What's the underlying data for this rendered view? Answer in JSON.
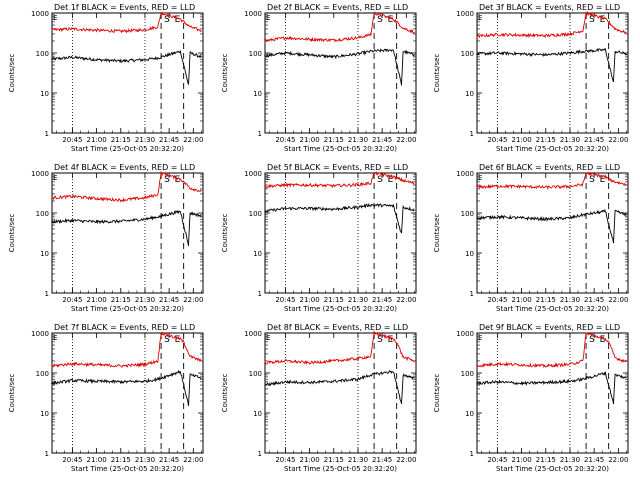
{
  "figure": {
    "time_axis_label": "Start Time (25-Oct-05 20:32:20)",
    "y_axis_label": "Counts/sec",
    "x_tick_labels": [
      "20:45",
      "21:00",
      "21:15",
      "21:30",
      "21:45",
      "22:00"
    ],
    "y_tick_labels": [
      "1",
      "10",
      "100",
      "1000"
    ],
    "marker_labels": [
      "S",
      "E"
    ],
    "colors": {
      "events": "#000000",
      "lld": "#e00000",
      "axes": "#000000",
      "background": "#ffffff"
    }
  },
  "chart_data": [
    {
      "type": "line",
      "title": "Det 1f BLACK = Events, RED = LLD",
      "xlabel": "Start Time (25-Oct-05 20:32:20)",
      "ylabel": "Counts/sec",
      "yscale": "log",
      "ylim": [
        1,
        1000
      ],
      "x_ticks": [
        "20:45",
        "21:00",
        "21:15",
        "21:30",
        "21:45",
        "22:00"
      ],
      "markers": {
        "S": "21:40",
        "E": "21:54"
      },
      "series": [
        {
          "name": "Events",
          "points": [
            [
              "20:32",
              70
            ],
            [
              "20:45",
              78
            ],
            [
              "21:00",
              68
            ],
            [
              "21:15",
              63
            ],
            [
              "21:30",
              68
            ],
            [
              "21:38",
              75
            ],
            [
              "21:52",
              110
            ],
            [
              "21:57",
              16
            ],
            [
              "21:58",
              100
            ],
            [
              "22:05",
              80
            ]
          ]
        },
        {
          "name": "LLD",
          "points": [
            [
              "20:32",
              380
            ],
            [
              "20:45",
              400
            ],
            [
              "21:00",
              370
            ],
            [
              "21:15",
              350
            ],
            [
              "21:30",
              380
            ],
            [
              "21:38",
              450
            ],
            [
              "21:40",
              1000
            ],
            [
              "21:52",
              700
            ],
            [
              "21:54",
              600
            ],
            [
              "21:58",
              450
            ],
            [
              "22:05",
              360
            ]
          ]
        }
      ]
    },
    {
      "type": "line",
      "title": "Det 2f BLACK = Events, RED = LLD",
      "xlabel": "Start Time (25-Oct-05 20:32:20)",
      "ylabel": "Counts/sec",
      "yscale": "log",
      "ylim": [
        1,
        1000
      ],
      "x_ticks": [
        "20:45",
        "21:00",
        "21:15",
        "21:30",
        "21:45",
        "22:00"
      ],
      "markers": {
        "S": "21:40",
        "E": "21:54"
      },
      "series": [
        {
          "name": "Events",
          "points": [
            [
              "20:32",
              85
            ],
            [
              "20:45",
              100
            ],
            [
              "21:00",
              90
            ],
            [
              "21:15",
              80
            ],
            [
              "21:30",
              95
            ],
            [
              "21:38",
              110
            ],
            [
              "21:52",
              120
            ],
            [
              "21:57",
              16
            ],
            [
              "21:58",
              110
            ],
            [
              "22:05",
              90
            ]
          ]
        },
        {
          "name": "LLD",
          "points": [
            [
              "20:32",
              200
            ],
            [
              "20:45",
              240
            ],
            [
              "21:00",
              220
            ],
            [
              "21:15",
              210
            ],
            [
              "21:30",
              240
            ],
            [
              "21:38",
              290
            ],
            [
              "21:40",
              1000
            ],
            [
              "21:52",
              700
            ],
            [
              "21:54",
              600
            ],
            [
              "21:58",
              420
            ],
            [
              "22:05",
              330
            ]
          ]
        }
      ]
    },
    {
      "type": "line",
      "title": "Det 3f BLACK = Events, RED = LLD",
      "xlabel": "Start Time (25-Oct-05 20:32:20)",
      "ylabel": "Counts/sec",
      "yscale": "log",
      "ylim": [
        1,
        1000
      ],
      "x_ticks": [
        "20:45",
        "21:00",
        "21:15",
        "21:30",
        "21:45",
        "22:00"
      ],
      "markers": {
        "S": "21:40",
        "E": "21:54"
      },
      "series": [
        {
          "name": "Events",
          "points": [
            [
              "20:32",
              95
            ],
            [
              "20:45",
              100
            ],
            [
              "21:00",
              95
            ],
            [
              "21:15",
              90
            ],
            [
              "21:30",
              100
            ],
            [
              "21:38",
              110
            ],
            [
              "21:52",
              120
            ],
            [
              "21:57",
              18
            ],
            [
              "21:58",
              110
            ],
            [
              "22:05",
              95
            ]
          ]
        },
        {
          "name": "LLD",
          "points": [
            [
              "20:32",
              260
            ],
            [
              "20:45",
              290
            ],
            [
              "21:00",
              280
            ],
            [
              "21:15",
              270
            ],
            [
              "21:30",
              300
            ],
            [
              "21:38",
              360
            ],
            [
              "21:40",
              1000
            ],
            [
              "21:52",
              700
            ],
            [
              "21:54",
              600
            ],
            [
              "21:58",
              400
            ],
            [
              "22:05",
              320
            ]
          ]
        }
      ]
    },
    {
      "type": "line",
      "title": "Det 4f BLACK = Events, RED = LLD",
      "xlabel": "Start Time (25-Oct-05 20:32:20)",
      "ylabel": "Counts/sec",
      "yscale": "log",
      "ylim": [
        1,
        1000
      ],
      "x_ticks": [
        "20:45",
        "21:00",
        "21:15",
        "21:30",
        "21:45",
        "22:00"
      ],
      "markers": {
        "S": "21:40",
        "E": "21:54"
      },
      "series": [
        {
          "name": "Events",
          "points": [
            [
              "20:32",
              60
            ],
            [
              "20:45",
              65
            ],
            [
              "21:00",
              60
            ],
            [
              "21:15",
              62
            ],
            [
              "21:30",
              70
            ],
            [
              "21:38",
              80
            ],
            [
              "21:52",
              110
            ],
            [
              "21:57",
              16
            ],
            [
              "21:58",
              100
            ],
            [
              "22:05",
              85
            ]
          ]
        },
        {
          "name": "LLD",
          "points": [
            [
              "20:32",
              240
            ],
            [
              "20:45",
              260
            ],
            [
              "21:00",
              230
            ],
            [
              "21:15",
              210
            ],
            [
              "21:30",
              240
            ],
            [
              "21:38",
              290
            ],
            [
              "21:40",
              1000
            ],
            [
              "21:52",
              700
            ],
            [
              "21:54",
              600
            ],
            [
              "21:58",
              420
            ],
            [
              "22:05",
              350
            ]
          ]
        }
      ]
    },
    {
      "type": "line",
      "title": "Det 5f BLACK = Events, RED = LLD",
      "xlabel": "Start Time (25-Oct-05 20:32:20)",
      "ylabel": "Counts/sec",
      "yscale": "log",
      "ylim": [
        1,
        1000
      ],
      "x_ticks": [
        "20:45",
        "21:00",
        "21:15",
        "21:30",
        "21:45",
        "22:00"
      ],
      "markers": {
        "S": "21:40",
        "E": "21:54"
      },
      "series": [
        {
          "name": "Events",
          "points": [
            [
              "20:32",
              110
            ],
            [
              "20:45",
              130
            ],
            [
              "21:00",
              130
            ],
            [
              "21:15",
              125
            ],
            [
              "21:30",
              140
            ],
            [
              "21:38",
              160
            ],
            [
              "21:52",
              150
            ],
            [
              "21:57",
              30
            ],
            [
              "21:58",
              140
            ],
            [
              "22:05",
              120
            ]
          ]
        },
        {
          "name": "LLD",
          "points": [
            [
              "20:32",
              460
            ],
            [
              "20:45",
              500
            ],
            [
              "21:00",
              500
            ],
            [
              "21:15",
              480
            ],
            [
              "21:30",
              510
            ],
            [
              "21:38",
              560
            ],
            [
              "21:40",
              1000
            ],
            [
              "21:52",
              800
            ],
            [
              "21:54",
              750
            ],
            [
              "21:58",
              650
            ],
            [
              "22:05",
              550
            ]
          ]
        }
      ]
    },
    {
      "type": "line",
      "title": "Det 6f BLACK = Events, RED = LLD",
      "xlabel": "Start Time (25-Oct-05 20:32:20)",
      "ylabel": "Counts/sec",
      "yscale": "log",
      "ylim": [
        1,
        1000
      ],
      "x_ticks": [
        "20:45",
        "21:00",
        "21:15",
        "21:30",
        "21:45",
        "22:00"
      ],
      "markers": {
        "S": "21:40",
        "E": "21:54"
      },
      "series": [
        {
          "name": "Events",
          "points": [
            [
              "20:32",
              75
            ],
            [
              "20:45",
              80
            ],
            [
              "21:00",
              75
            ],
            [
              "21:15",
              70
            ],
            [
              "21:30",
              75
            ],
            [
              "21:38",
              90
            ],
            [
              "21:52",
              110
            ],
            [
              "21:57",
              18
            ],
            [
              "21:58",
              110
            ],
            [
              "22:05",
              90
            ]
          ]
        },
        {
          "name": "LLD",
          "points": [
            [
              "20:32",
              440
            ],
            [
              "20:45",
              470
            ],
            [
              "21:00",
              460
            ],
            [
              "21:15",
              440
            ],
            [
              "21:30",
              460
            ],
            [
              "21:38",
              520
            ],
            [
              "21:40",
              1000
            ],
            [
              "21:52",
              800
            ],
            [
              "21:54",
              700
            ],
            [
              "21:58",
              600
            ],
            [
              "22:05",
              520
            ]
          ]
        }
      ]
    },
    {
      "type": "line",
      "title": "Det 7f BLACK = Events, RED = LLD",
      "xlabel": "Start Time (25-Oct-05 20:32:20)",
      "ylabel": "Counts/sec",
      "yscale": "log",
      "ylim": [
        1,
        1000
      ],
      "x_ticks": [
        "20:45",
        "21:00",
        "21:15",
        "21:30",
        "21:45",
        "22:00"
      ],
      "markers": {
        "S": "21:40",
        "E": "21:54"
      },
      "series": [
        {
          "name": "Events",
          "points": [
            [
              "20:32",
              55
            ],
            [
              "20:45",
              65
            ],
            [
              "21:00",
              62
            ],
            [
              "21:15",
              60
            ],
            [
              "21:30",
              62
            ],
            [
              "21:38",
              70
            ],
            [
              "21:52",
              110
            ],
            [
              "21:57",
              16
            ],
            [
              "21:58",
              90
            ],
            [
              "22:05",
              75
            ]
          ]
        },
        {
          "name": "LLD",
          "points": [
            [
              "20:32",
              150
            ],
            [
              "20:45",
              170
            ],
            [
              "21:00",
              160
            ],
            [
              "21:15",
              150
            ],
            [
              "21:30",
              165
            ],
            [
              "21:38",
              200
            ],
            [
              "21:40",
              1000
            ],
            [
              "21:52",
              700
            ],
            [
              "21:54",
              600
            ],
            [
              "21:58",
              260
            ],
            [
              "22:05",
              200
            ]
          ]
        }
      ]
    },
    {
      "type": "line",
      "title": "Det 8f BLACK = Events, RED = LLD",
      "xlabel": "Start Time (25-Oct-05 20:32:20)",
      "ylabel": "Counts/sec",
      "yscale": "log",
      "ylim": [
        1,
        1000
      ],
      "x_ticks": [
        "20:45",
        "21:00",
        "21:15",
        "21:30",
        "21:45",
        "22:00"
      ],
      "markers": {
        "S": "21:40",
        "E": "21:54"
      },
      "series": [
        {
          "name": "Events",
          "points": [
            [
              "20:32",
              50
            ],
            [
              "20:45",
              60
            ],
            [
              "21:00",
              58
            ],
            [
              "21:15",
              62
            ],
            [
              "21:30",
              70
            ],
            [
              "21:38",
              90
            ],
            [
              "21:52",
              110
            ],
            [
              "21:57",
              16
            ],
            [
              "21:58",
              90
            ],
            [
              "22:05",
              75
            ]
          ]
        },
        {
          "name": "LLD",
          "points": [
            [
              "20:32",
              180
            ],
            [
              "20:45",
              200
            ],
            [
              "21:00",
              180
            ],
            [
              "21:15",
              200
            ],
            [
              "21:30",
              230
            ],
            [
              "21:38",
              260
            ],
            [
              "21:40",
              1000
            ],
            [
              "21:52",
              700
            ],
            [
              "21:54",
              600
            ],
            [
              "21:58",
              250
            ],
            [
              "22:05",
              200
            ]
          ]
        }
      ]
    },
    {
      "type": "line",
      "title": "Det 9f BLACK = Events, RED = LLD",
      "xlabel": "Start Time (25-Oct-05 20:32:20)",
      "ylabel": "Counts/sec",
      "yscale": "log",
      "ylim": [
        1,
        1000
      ],
      "x_ticks": [
        "20:45",
        "21:00",
        "21:15",
        "21:30",
        "21:45",
        "22:00"
      ],
      "markers": {
        "S": "21:40",
        "E": "21:54"
      },
      "series": [
        {
          "name": "Events",
          "points": [
            [
              "20:32",
              55
            ],
            [
              "20:45",
              60
            ],
            [
              "21:00",
              55
            ],
            [
              "21:15",
              58
            ],
            [
              "21:30",
              62
            ],
            [
              "21:38",
              70
            ],
            [
              "21:52",
              100
            ],
            [
              "21:57",
              18
            ],
            [
              "21:58",
              90
            ],
            [
              "22:05",
              75
            ]
          ]
        },
        {
          "name": "LLD",
          "points": [
            [
              "20:32",
              150
            ],
            [
              "20:45",
              170
            ],
            [
              "21:00",
              160
            ],
            [
              "21:15",
              150
            ],
            [
              "21:30",
              165
            ],
            [
              "21:38",
              200
            ],
            [
              "21:40",
              1000
            ],
            [
              "21:52",
              700
            ],
            [
              "21:54",
              600
            ],
            [
              "21:58",
              240
            ],
            [
              "22:05",
              190
            ]
          ]
        }
      ]
    }
  ]
}
